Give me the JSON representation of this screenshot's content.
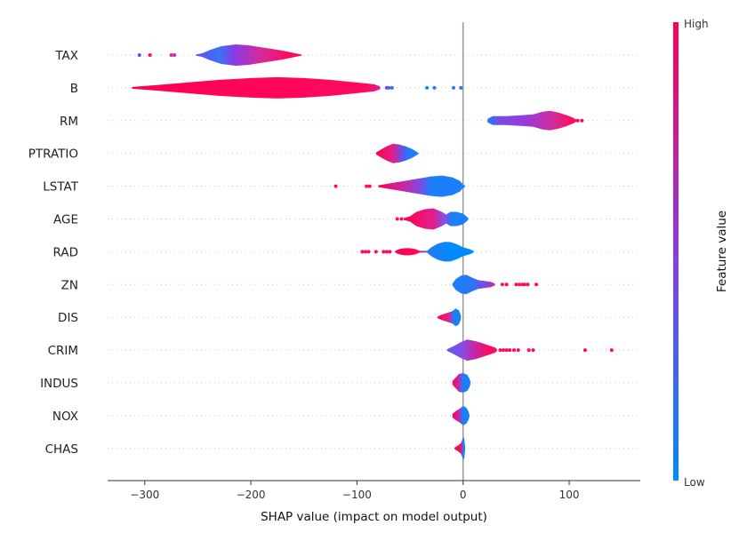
{
  "chart_data": {
    "type": "violin",
    "xlabel": "SHAP value (impact on model output)",
    "xticks": [
      -300,
      -200,
      -100,
      0,
      100
    ],
    "xlim": [
      -335,
      167
    ],
    "zero_line": 0,
    "colorbar": {
      "label": "Feature value",
      "high": "High",
      "low": "Low",
      "high_color": "#ff0051",
      "mid_color": "#8b3be0",
      "low_color": "#008bfb"
    },
    "features": [
      {
        "name": "TAX",
        "min": -305,
        "max": -152,
        "profile": [
          [
            -252,
            0.5
          ],
          [
            -246,
            2
          ],
          [
            -238,
            6
          ],
          [
            -228,
            10
          ],
          [
            -214,
            12
          ],
          [
            -202,
            11
          ],
          [
            -186,
            8
          ],
          [
            -170,
            5
          ],
          [
            -158,
            2
          ],
          [
            -152,
            0.5
          ]
        ],
        "gradient": [
          [
            -252,
            "#6b4ee6"
          ],
          [
            -230,
            "#3a73f5"
          ],
          [
            -215,
            "#8b3be0"
          ],
          [
            -190,
            "#d42a9a"
          ],
          [
            -165,
            "#ff0a60"
          ]
        ],
        "outliers": [
          [
            -305,
            "#7a45e0"
          ],
          [
            -295,
            "#ff0a60"
          ],
          [
            -275,
            "#cc2aa8"
          ],
          [
            -272,
            "#d62a98"
          ]
        ]
      },
      {
        "name": "B",
        "min": -312,
        "max": 0,
        "profile": [
          [
            -312,
            1
          ],
          [
            -290,
            3
          ],
          [
            -260,
            6
          ],
          [
            -230,
            9
          ],
          [
            -200,
            11
          ],
          [
            -175,
            12
          ],
          [
            -150,
            11
          ],
          [
            -125,
            9
          ],
          [
            -100,
            6
          ],
          [
            -84,
            4
          ],
          [
            -79,
            2
          ],
          [
            -78,
            0.5
          ]
        ],
        "gradient": [
          [
            -312,
            "#ff0051"
          ],
          [
            -90,
            "#ff0a60"
          ],
          [
            -79,
            "#e11a8a"
          ]
        ],
        "outliers": [
          [
            -72,
            "#6a4ae6"
          ],
          [
            -70,
            "#4a63f0"
          ],
          [
            -67,
            "#3070f5"
          ],
          [
            -34,
            "#1a7ff8"
          ],
          [
            -27,
            "#1a7ff8"
          ],
          [
            -9,
            "#1a7ff8"
          ],
          [
            -2,
            "#3a6ff2"
          ]
        ]
      },
      {
        "name": "RM",
        "min": 23,
        "max": 112,
        "profile": [
          [
            23,
            2
          ],
          [
            28,
            5
          ],
          [
            40,
            5
          ],
          [
            55,
            6
          ],
          [
            66,
            7
          ],
          [
            75,
            10
          ],
          [
            82,
            11
          ],
          [
            90,
            9
          ],
          [
            98,
            6
          ],
          [
            104,
            3
          ],
          [
            107,
            1
          ]
        ],
        "gradient": [
          [
            23,
            "#1a7ff8"
          ],
          [
            35,
            "#7a4ae3"
          ],
          [
            60,
            "#9a3ad8"
          ],
          [
            85,
            "#d42a9a"
          ],
          [
            104,
            "#ff0a60"
          ]
        ],
        "outliers": [
          [
            108,
            "#ff0a60"
          ],
          [
            112,
            "#ff0a60"
          ]
        ]
      },
      {
        "name": "PTRATIO",
        "min": -82,
        "max": -42,
        "profile": [
          [
            -82,
            1
          ],
          [
            -78,
            4
          ],
          [
            -72,
            8
          ],
          [
            -66,
            11
          ],
          [
            -60,
            10
          ],
          [
            -54,
            8
          ],
          [
            -48,
            5
          ],
          [
            -44,
            2
          ],
          [
            -42,
            0.5
          ]
        ],
        "gradient": [
          [
            -82,
            "#ff0051"
          ],
          [
            -66,
            "#e0208c"
          ],
          [
            -58,
            "#6a4ee6"
          ],
          [
            -50,
            "#1a7ff8"
          ]
        ],
        "outliers": []
      },
      {
        "name": "LSTAT",
        "min": -120,
        "max": 2,
        "profile": [
          [
            -80,
            1
          ],
          [
            -70,
            3
          ],
          [
            -60,
            5
          ],
          [
            -50,
            7
          ],
          [
            -40,
            9
          ],
          [
            -30,
            11
          ],
          [
            -20,
            12
          ],
          [
            -10,
            10
          ],
          [
            -3,
            6
          ],
          [
            0,
            2
          ],
          [
            2,
            0.5
          ]
        ],
        "gradient": [
          [
            -80,
            "#ff0051"
          ],
          [
            -55,
            "#c02aa8"
          ],
          [
            -40,
            "#7a4ae3"
          ],
          [
            -30,
            "#1a7ff8"
          ]
        ],
        "outliers": [
          [
            -120,
            "#ff0a60"
          ],
          [
            -91,
            "#ff0a60"
          ],
          [
            -88,
            "#ff0a60"
          ]
        ]
      },
      {
        "name": "AGE",
        "min": -62,
        "max": 5,
        "profile": [
          [
            -56,
            1
          ],
          [
            -50,
            3
          ],
          [
            -44,
            8
          ],
          [
            -36,
            11
          ],
          [
            -28,
            12
          ],
          [
            -20,
            8
          ],
          [
            -16,
            5
          ],
          [
            -12,
            8
          ],
          [
            -6,
            8
          ],
          [
            0,
            6
          ],
          [
            4,
            2
          ],
          [
            5,
            0.5
          ]
        ],
        "gradient": [
          [
            -56,
            "#ff0051"
          ],
          [
            -28,
            "#e0208c"
          ],
          [
            -18,
            "#8a4ae6"
          ],
          [
            -10,
            "#1a7ff8"
          ]
        ],
        "outliers": [
          [
            -62,
            "#ff0a60"
          ],
          [
            -58,
            "#ff0a60"
          ]
        ]
      },
      {
        "name": "RAD",
        "min": -95,
        "max": 10,
        "profile": [
          [
            -64,
            1
          ],
          [
            -60,
            3
          ],
          [
            -55,
            4
          ],
          [
            -50,
            4
          ],
          [
            -45,
            3
          ],
          [
            -41,
            1
          ],
          [
            -34,
            1
          ],
          [
            -30,
            5
          ],
          [
            -24,
            9
          ],
          [
            -18,
            11
          ],
          [
            -12,
            11
          ],
          [
            -5,
            8
          ],
          [
            0,
            5
          ],
          [
            6,
            3
          ],
          [
            10,
            1
          ]
        ],
        "gradient": [
          [
            -64,
            "#ff0051"
          ],
          [
            -41,
            "#ff0a60"
          ],
          [
            -34,
            "#2a78f6"
          ],
          [
            -10,
            "#008bfb"
          ]
        ],
        "outliers": [
          [
            -95,
            "#ff0a60"
          ],
          [
            -92,
            "#ff0a60"
          ],
          [
            -89,
            "#ff0a60"
          ],
          [
            -82,
            "#ff0a60"
          ],
          [
            -75,
            "#ff0a60"
          ],
          [
            -72,
            "#ff0a60"
          ],
          [
            -69,
            "#ff0a60"
          ]
        ]
      },
      {
        "name": "ZN",
        "min": -10,
        "max": 70,
        "profile": [
          [
            -10,
            1
          ],
          [
            -7,
            6
          ],
          [
            -2,
            10
          ],
          [
            3,
            11
          ],
          [
            8,
            8
          ],
          [
            14,
            5
          ],
          [
            20,
            4
          ],
          [
            26,
            3
          ],
          [
            30,
            1
          ]
        ],
        "gradient": [
          [
            -10,
            "#1a7ff8"
          ],
          [
            8,
            "#2a78f6"
          ],
          [
            20,
            "#7a4ae3"
          ],
          [
            30,
            "#c02aa8"
          ]
        ],
        "outliers": [
          [
            37,
            "#ff0a60"
          ],
          [
            41,
            "#ff0a60"
          ],
          [
            50,
            "#ff0a60"
          ],
          [
            53,
            "#ff0a60"
          ],
          [
            56,
            "#ff0a60"
          ],
          [
            58,
            "#ff0a60"
          ],
          [
            61,
            "#ff0a60"
          ],
          [
            69,
            "#ff0a60"
          ]
        ]
      },
      {
        "name": "DIS",
        "min": -24,
        "max": -2,
        "profile": [
          [
            -24,
            1
          ],
          [
            -20,
            3
          ],
          [
            -15,
            5
          ],
          [
            -10,
            7
          ],
          [
            -7,
            10
          ],
          [
            -4,
            8
          ],
          [
            -2,
            2
          ]
        ],
        "gradient": [
          [
            -24,
            "#ff0051"
          ],
          [
            -14,
            "#e0208c"
          ],
          [
            -8,
            "#1a7ff8"
          ]
        ],
        "outliers": []
      },
      {
        "name": "CRIM",
        "min": -15,
        "max": 140,
        "profile": [
          [
            -15,
            1
          ],
          [
            -8,
            5
          ],
          [
            -2,
            9
          ],
          [
            4,
            12
          ],
          [
            12,
            10
          ],
          [
            20,
            7
          ],
          [
            25,
            5
          ],
          [
            30,
            3
          ],
          [
            32,
            1
          ]
        ],
        "gradient": [
          [
            -15,
            "#5a5aea"
          ],
          [
            0,
            "#8a4ae6"
          ],
          [
            10,
            "#c02aa8"
          ],
          [
            25,
            "#ff0a60"
          ]
        ],
        "outliers": [
          [
            35,
            "#ff0a60"
          ],
          [
            38,
            "#ff0a60"
          ],
          [
            41,
            "#ff0a60"
          ],
          [
            44,
            "#ff0a60"
          ],
          [
            48,
            "#ff0a60"
          ],
          [
            52,
            "#ff0a60"
          ],
          [
            62,
            "#ff0a60"
          ],
          [
            66,
            "#ff0a60"
          ],
          [
            115,
            "#ff0a60"
          ],
          [
            140,
            "#ff0a60"
          ]
        ]
      },
      {
        "name": "INDUS",
        "min": -10,
        "max": 7,
        "profile": [
          [
            -10,
            2
          ],
          [
            -7,
            6
          ],
          [
            -4,
            10
          ],
          [
            0,
            11
          ],
          [
            4,
            9
          ],
          [
            6,
            5
          ],
          [
            7,
            1
          ]
        ],
        "gradient": [
          [
            -10,
            "#ff0051"
          ],
          [
            -4,
            "#c02aa8"
          ],
          [
            0,
            "#1a7ff8"
          ]
        ],
        "outliers": []
      },
      {
        "name": "NOX",
        "min": -10,
        "max": 6,
        "profile": [
          [
            -10,
            2
          ],
          [
            -7,
            5
          ],
          [
            -3,
            8
          ],
          [
            0,
            11
          ],
          [
            3,
            9
          ],
          [
            5,
            5
          ],
          [
            6,
            1
          ]
        ],
        "gradient": [
          [
            -10,
            "#ff0051"
          ],
          [
            -4,
            "#c02aa8"
          ],
          [
            0,
            "#1a7ff8"
          ]
        ],
        "outliers": []
      },
      {
        "name": "CHAS",
        "min": -8,
        "max": 2,
        "profile": [
          [
            -8,
            1
          ],
          [
            -5,
            3
          ],
          [
            -2,
            6
          ],
          [
            0,
            12
          ],
          [
            1,
            12
          ],
          [
            2,
            1
          ]
        ],
        "gradient": [
          [
            -8,
            "#ff0051"
          ],
          [
            -2,
            "#ff0a60"
          ],
          [
            0,
            "#1a7ff8"
          ]
        ],
        "outliers": []
      }
    ]
  }
}
